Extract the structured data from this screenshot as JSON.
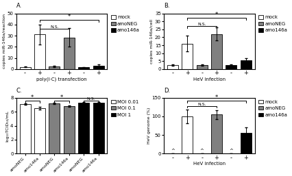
{
  "chart_data": [
    {
      "type": "bar",
      "title": "A.",
      "xlabel": "poly(I·C) transfection",
      "ylabel": "copies miR-146a/reaction",
      "categories": [
        "-",
        "+",
        "-",
        "+",
        "-",
        "+"
      ],
      "series": [
        {
          "name": "mock",
          "color": "white",
          "values": [
            2,
            31,
            null,
            null,
            null,
            null
          ],
          "errors": [
            0.5,
            9,
            null,
            null,
            null,
            null
          ]
        },
        {
          "name": "amoNEG",
          "color": "gray",
          "values": [
            null,
            null,
            2.5,
            28.5,
            null,
            null
          ],
          "errors": [
            null,
            null,
            0.5,
            8,
            null,
            null
          ]
        },
        {
          "name": "amo146a",
          "color": "black",
          "values": [
            null,
            null,
            null,
            null,
            1.5,
            3
          ],
          "errors": [
            null,
            null,
            null,
            null,
            0.5,
            1
          ]
        }
      ],
      "ylim": [
        0,
        50
      ],
      "yticks": [
        0,
        10,
        20,
        30,
        40,
        50
      ],
      "legend": "upper left",
      "annotations": [
        {
          "text": "N.S.",
          "x": [
            1,
            3
          ],
          "y": 36
        },
        {
          "text": "*",
          "x": [
            1,
            5
          ],
          "y": 44
        }
      ]
    },
    {
      "type": "bar",
      "title": "B.",
      "xlabel": "HeV infection",
      "ylabel": "copies miR-146a/cell",
      "categories": [
        "-",
        "+",
        "-",
        "+",
        "-",
        "+"
      ],
      "series": [
        {
          "name": "mock",
          "color": "white",
          "values": [
            2.5,
            16,
            null,
            null,
            null,
            null
          ],
          "errors": [
            0.5,
            5,
            null,
            null,
            null,
            null
          ]
        },
        {
          "name": "amoNEG",
          "color": "gray",
          "values": [
            null,
            null,
            2.5,
            22,
            null,
            null
          ],
          "errors": [
            null,
            null,
            0.5,
            4,
            null,
            null
          ]
        },
        {
          "name": "amo146a",
          "color": "black",
          "values": [
            null,
            null,
            null,
            null,
            2.5,
            5.5
          ],
          "errors": [
            null,
            null,
            null,
            null,
            0.5,
            1.5
          ]
        }
      ],
      "ylim": [
        0,
        35
      ],
      "yticks": [
        0,
        5,
        10,
        15,
        20,
        25,
        30,
        35
      ],
      "legend": "upper left",
      "annotations": [
        {
          "text": "N.S.",
          "x": [
            1,
            3
          ],
          "y": 27
        },
        {
          "text": "*",
          "x": [
            1,
            5
          ],
          "y": 32
        }
      ]
    },
    {
      "type": "bar",
      "title": "C.",
      "ylabel": "log₁₀TCID₅₀/mL",
      "categories": [
        "amoNEG",
        "amo146a",
        "amoNEG",
        "amo146a",
        "amoNEG",
        "amo146a"
      ],
      "series": [
        {
          "name": "MOI 0.01",
          "color": "white",
          "values": [
            7.1,
            6.5,
            null,
            null,
            null,
            null
          ],
          "errors": [
            0.1,
            0.2,
            null,
            null,
            null,
            null
          ]
        },
        {
          "name": "MOI 0.1",
          "color": "gray",
          "values": [
            null,
            null,
            7.2,
            6.8,
            null,
            null
          ],
          "errors": [
            null,
            null,
            0.08,
            0.12,
            null,
            null
          ]
        },
        {
          "name": "MOI 1",
          "color": "black",
          "values": [
            null,
            null,
            null,
            null,
            7.3,
            7.3
          ],
          "errors": [
            null,
            null,
            null,
            null,
            0.08,
            0.08
          ]
        }
      ],
      "ylim": [
        0,
        8
      ],
      "yticks": [
        0,
        2,
        4,
        6,
        8
      ],
      "legend": "upper left",
      "annotations": [
        {
          "text": "*",
          "x": [
            0,
            1
          ],
          "y": 7.55
        },
        {
          "text": "*",
          "x": [
            2,
            3
          ],
          "y": 7.55
        },
        {
          "text": "N.S.",
          "x": [
            4,
            5
          ],
          "y": 7.55
        }
      ]
    },
    {
      "type": "bar",
      "title": "D.",
      "xlabel": "HeV infection",
      "ylabel": "HeV genome (%)",
      "categories": [
        "-",
        "+",
        "-",
        "+",
        "-",
        "+"
      ],
      "series": [
        {
          "name": "mock",
          "color": "white",
          "values": [
            0,
            100,
            null,
            null,
            null,
            null
          ],
          "errors": [
            0,
            18,
            null,
            null,
            null,
            null
          ]
        },
        {
          "name": "amoNEG",
          "color": "gray",
          "values": [
            null,
            null,
            0,
            105,
            null,
            null
          ],
          "errors": [
            null,
            null,
            0,
            12,
            null,
            null
          ]
        },
        {
          "name": "amo146a",
          "color": "black",
          "values": [
            null,
            null,
            null,
            null,
            0,
            55
          ],
          "errors": [
            null,
            null,
            null,
            null,
            0,
            15
          ]
        }
      ],
      "ylim": [
        0,
        150
      ],
      "yticks": [
        0,
        50,
        100,
        150
      ],
      "legend": "upper left",
      "annotations": [
        {
          "text": "N.S.",
          "x": [
            1,
            3
          ],
          "y": 128
        },
        {
          "text": "*",
          "x": [
            1,
            5
          ],
          "y": 142
        },
        {
          "text": "^",
          "x": 0,
          "y": 2
        },
        {
          "text": "^",
          "x": 2,
          "y": 2
        },
        {
          "text": "^",
          "x": 4,
          "y": 2
        }
      ]
    }
  ]
}
